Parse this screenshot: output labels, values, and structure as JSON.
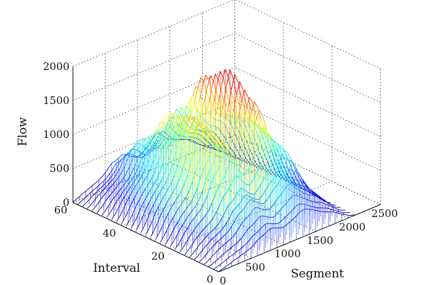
{
  "chart_data": {
    "type": "surface3d",
    "title": "",
    "xlabel": "Segment",
    "ylabel": "Interval",
    "zlabel": "Flow",
    "xlim": [
      0,
      2500
    ],
    "ylim": [
      0,
      60
    ],
    "zlim": [
      0,
      2000
    ],
    "x_ticks": [
      "0",
      "500",
      "1000",
      "1500",
      "2000",
      "2500"
    ],
    "y_ticks": [
      "0",
      "20",
      "40",
      "60"
    ],
    "z_ticks": [
      "0",
      "500",
      "1000",
      "1500",
      "2000"
    ],
    "grid": true,
    "colormap": "jet",
    "x": [
      0,
      50,
      100,
      150,
      200,
      250,
      300,
      350,
      400,
      450,
      500,
      550,
      600,
      650,
      700,
      750,
      800,
      850,
      900,
      950,
      1000,
      1050,
      1100,
      1150,
      1200,
      1250,
      1300,
      1350,
      1400,
      1450,
      1500,
      1550,
      1600,
      1650,
      1700,
      1750,
      1800,
      1850,
      1900,
      1950,
      2000,
      2050,
      2100
    ],
    "series": [
      {
        "interval": 0,
        "values": [
          5,
          20,
          30,
          45,
          60,
          80,
          90,
          110,
          120,
          140,
          160,
          190,
          230,
          250,
          270,
          300,
          320,
          310,
          290,
          270,
          260,
          280,
          300,
          320,
          350,
          380,
          400,
          390,
          370,
          340,
          310,
          280,
          250,
          230,
          210,
          190,
          160,
          130,
          100,
          70,
          40,
          20,
          10
        ]
      },
      {
        "interval": 10,
        "values": [
          10,
          40,
          80,
          120,
          160,
          190,
          220,
          240,
          270,
          300,
          360,
          420,
          500,
          520,
          560,
          620,
          650,
          600,
          560,
          520,
          500,
          540,
          600,
          660,
          700,
          760,
          820,
          780,
          700,
          640,
          580,
          520,
          480,
          450,
          420,
          380,
          320,
          260,
          200,
          140,
          80,
          40,
          15
        ]
      },
      {
        "interval": 20,
        "values": [
          30,
          80,
          150,
          220,
          280,
          340,
          390,
          430,
          480,
          550,
          650,
          780,
          900,
          950,
          1050,
          1200,
          1260,
          1180,
          1050,
          950,
          900,
          950,
          1050,
          1150,
          1300,
          1500,
          1650,
          1550,
          1350,
          1200,
          1100,
          1000,
          950,
          900,
          850,
          780,
          650,
          520,
          380,
          260,
          150,
          70,
          20
        ]
      },
      {
        "interval": 30,
        "values": [
          40,
          110,
          200,
          300,
          380,
          450,
          520,
          580,
          650,
          750,
          880,
          1050,
          1200,
          1250,
          1350,
          1450,
          1420,
          1300,
          1150,
          1050,
          980,
          1050,
          1200,
          1300,
          1500,
          1750,
          1950,
          1800,
          1550,
          1350,
          1250,
          1150,
          1100,
          1050,
          1000,
          920,
          780,
          620,
          460,
          320,
          180,
          90,
          25
        ]
      },
      {
        "interval": 40,
        "values": [
          30,
          90,
          170,
          260,
          330,
          400,
          460,
          520,
          580,
          660,
          780,
          950,
          1100,
          1150,
          1200,
          1350,
          1320,
          1200,
          1050,
          960,
          900,
          960,
          1100,
          1180,
          1350,
          1550,
          1700,
          1600,
          1400,
          1250,
          1150,
          1050,
          1000,
          960,
          920,
          840,
          700,
          560,
          410,
          290,
          160,
          80,
          20
        ]
      },
      {
        "interval": 50,
        "values": [
          20,
          60,
          110,
          160,
          200,
          240,
          280,
          320,
          360,
          420,
          500,
          600,
          700,
          720,
          760,
          820,
          800,
          740,
          660,
          600,
          560,
          600,
          680,
          740,
          840,
          960,
          1050,
          980,
          860,
          760,
          700,
          640,
          600,
          570,
          540,
          490,
          410,
          330,
          240,
          170,
          100,
          50,
          12
        ]
      },
      {
        "interval": 60,
        "values": [
          8,
          25,
          45,
          70,
          90,
          110,
          130,
          150,
          170,
          200,
          240,
          290,
          340,
          350,
          370,
          400,
          390,
          360,
          320,
          290,
          270,
          290,
          330,
          360,
          410,
          470,
          510,
          480,
          420,
          370,
          340,
          310,
          290,
          280,
          260,
          240,
          200,
          160,
          120,
          80,
          50,
          25,
          6
        ]
      }
    ]
  }
}
